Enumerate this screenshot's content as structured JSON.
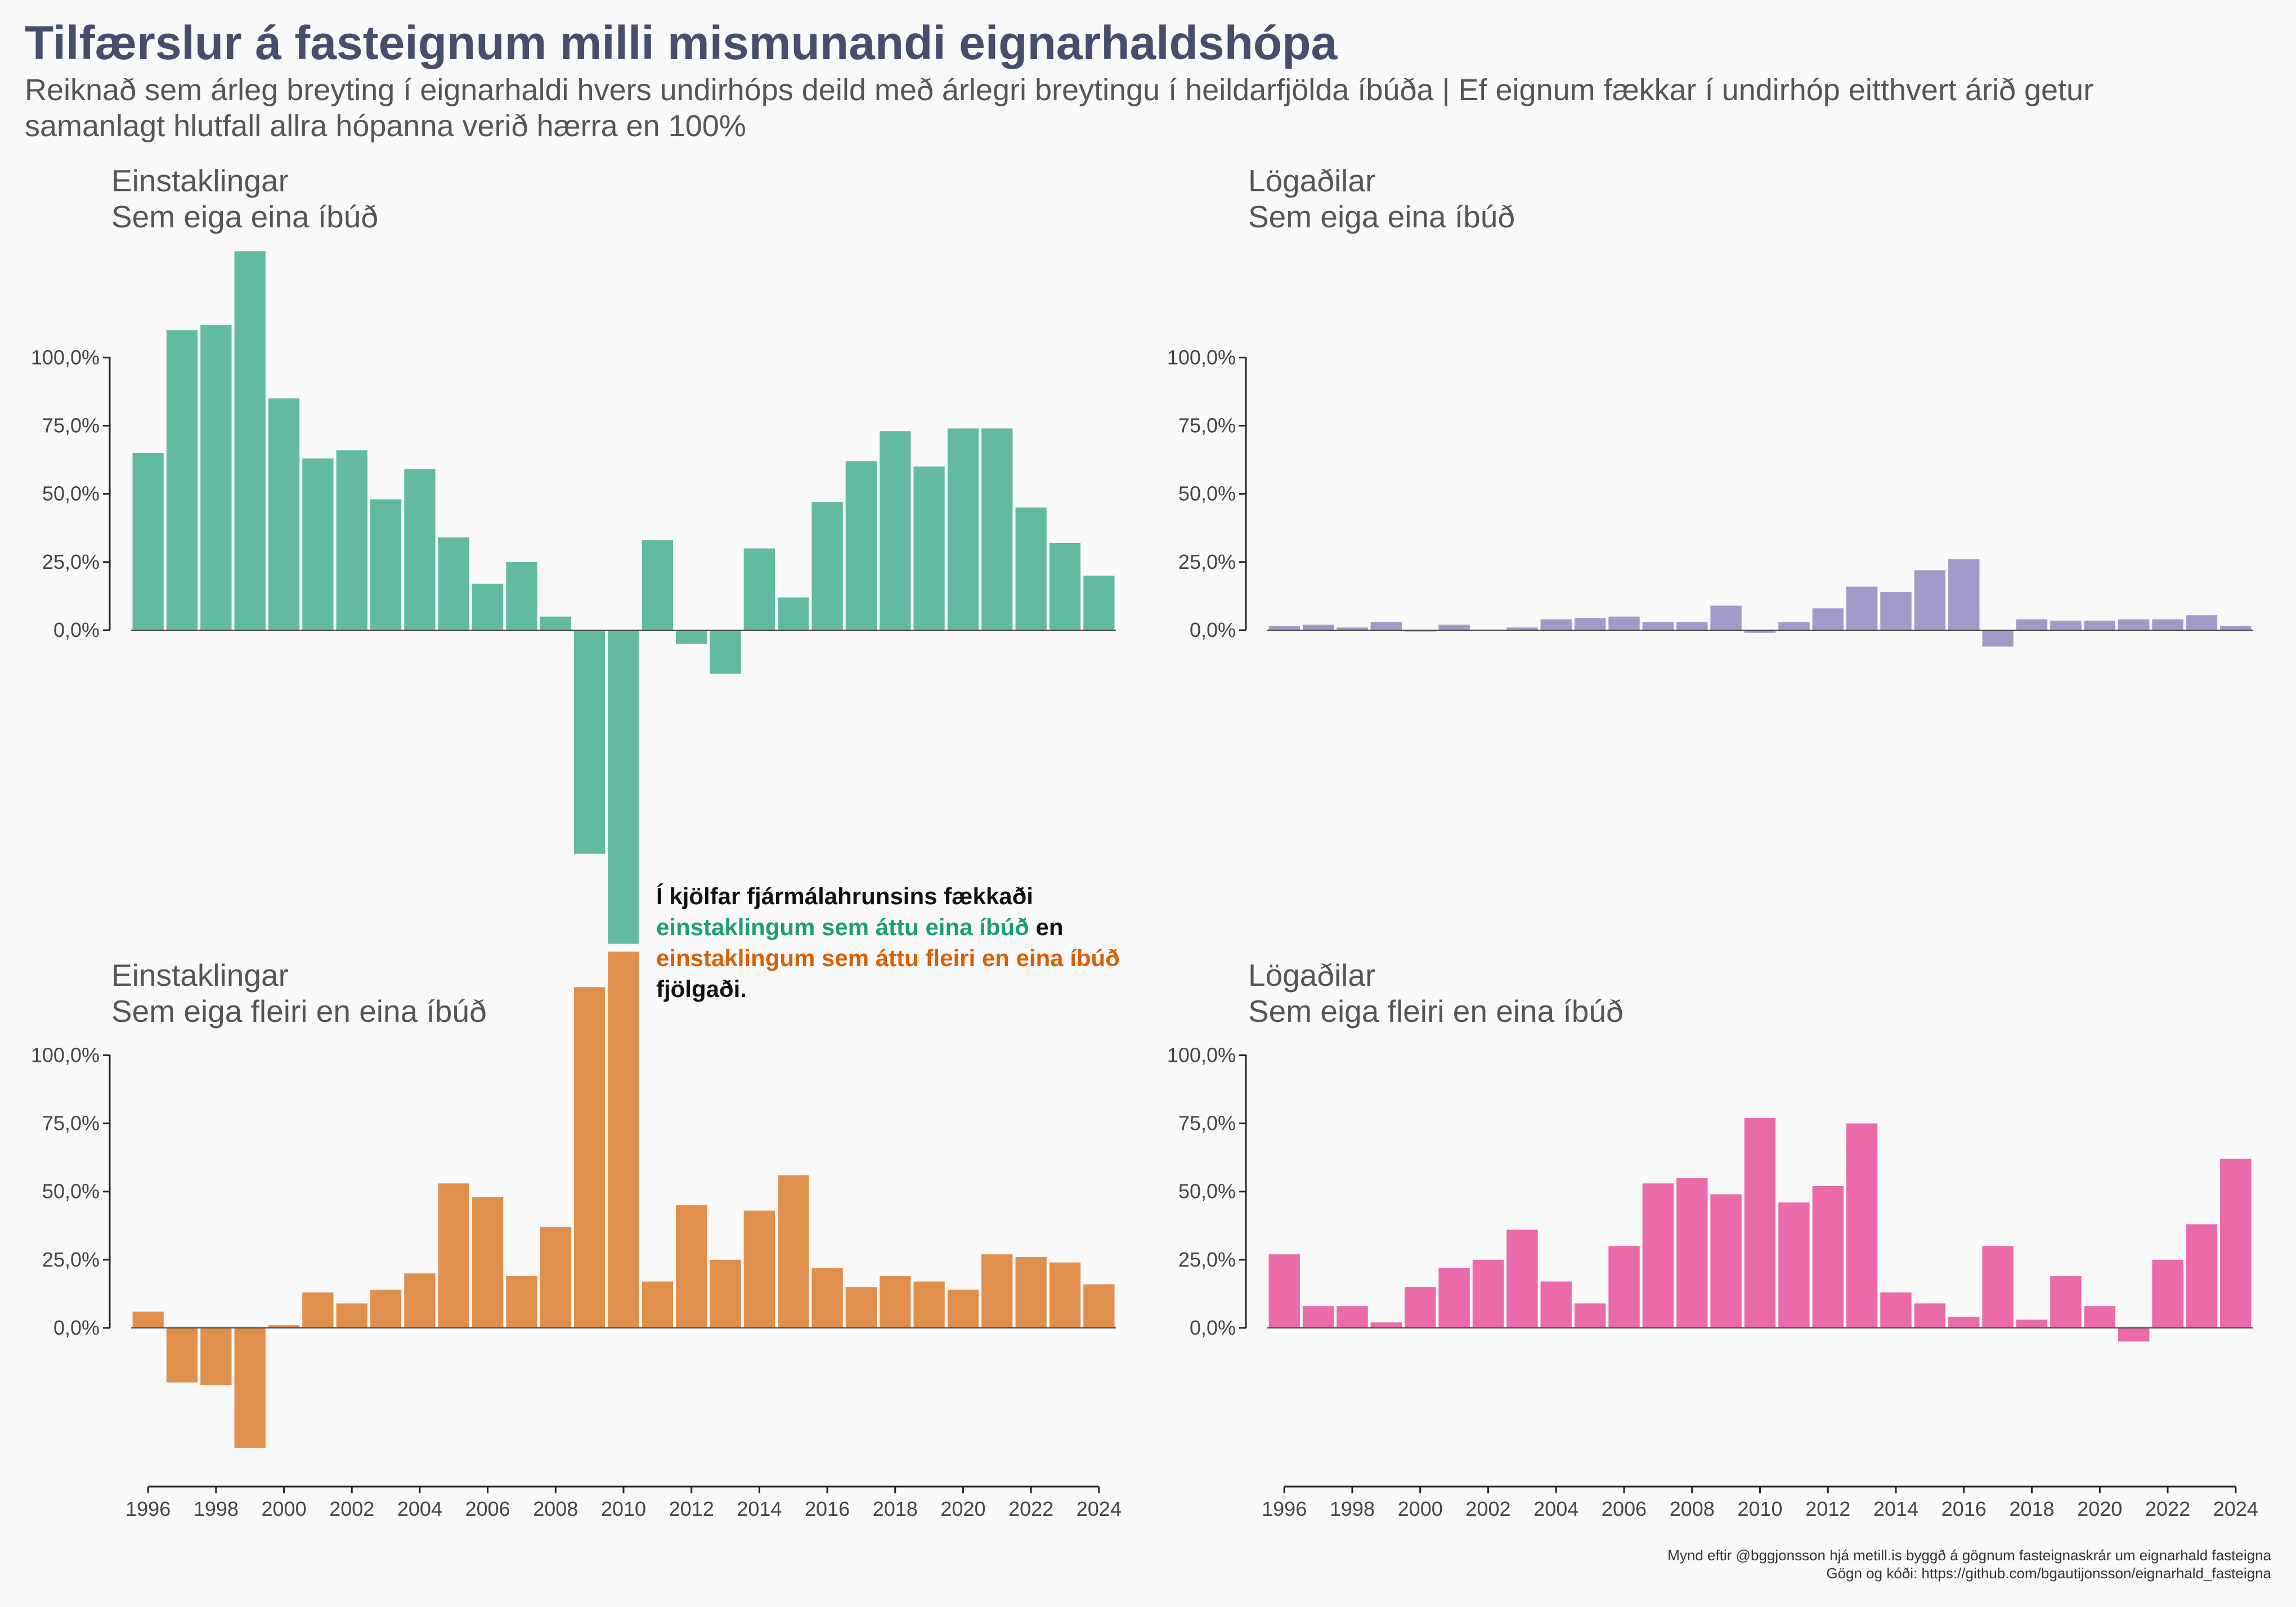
{
  "title": "Tilfærslur á fasteignum milli mismunandi eignarhaldshópa",
  "subtitle": "Reiknað sem árleg breyting í eignarhaldi hvers undirhóps deild með árlegri breytingu í heildarfjölda íbúða | Ef eignum fækkar í undirhóp eitthvert árið getur samanlagt hlutfall allra hópanna verið hærra en 100%",
  "caption": {
    "line1": "Mynd eftir @bggjonsson hjá metill.is byggð á gögnum fasteignaskrár um eignarhald fasteigna",
    "line2": "Gögn og kóði: https://github.com/bgautijonsson/eignarhald_fasteigna"
  },
  "annotation": {
    "line1": "Í kjölfar fjármálahrunsins fækkaði",
    "line2a": "einstaklingum sem áttu eina íbúð",
    "line2b": " en",
    "line3": "einstaklingum sem áttu fleiri en eina íbúð",
    "line4": "fjölgaði."
  },
  "chart_data": [
    {
      "type": "bar",
      "title": "Einstaklingar",
      "subtitle": "Sem eiga eina íbúð",
      "color": "#62bba0",
      "x": [
        1996,
        1997,
        1998,
        1999,
        2000,
        2001,
        2002,
        2003,
        2004,
        2005,
        2006,
        2007,
        2008,
        2009,
        2010,
        2011,
        2012,
        2013,
        2014,
        2015,
        2016,
        2017,
        2018,
        2019,
        2020,
        2021,
        2022,
        2023,
        2024
      ],
      "values": [
        65,
        110,
        112,
        139,
        85,
        63,
        66,
        48,
        59,
        34,
        17,
        25,
        5,
        -82,
        -115,
        33,
        -5,
        -16,
        30,
        12,
        47,
        62,
        73,
        60,
        74,
        74,
        45,
        32,
        20
      ],
      "yticks": [
        "0,0%",
        "25,0%",
        "50,0%",
        "75,0%",
        "100,0%"
      ],
      "ylim": [
        -115,
        139
      ]
    },
    {
      "type": "bar",
      "title": "Lögaðilar",
      "subtitle": "Sem eiga eina íbúð",
      "color": "#a19ac9",
      "x": [
        1996,
        1997,
        1998,
        1999,
        2000,
        2001,
        2002,
        2003,
        2004,
        2005,
        2006,
        2007,
        2008,
        2009,
        2010,
        2011,
        2012,
        2013,
        2014,
        2015,
        2016,
        2017,
        2018,
        2019,
        2020,
        2021,
        2022,
        2023,
        2024
      ],
      "values": [
        1.5,
        2,
        1,
        3,
        -0.5,
        2,
        0,
        1,
        4,
        4.5,
        5,
        3,
        3,
        9,
        -1,
        3,
        8,
        16,
        14,
        22,
        26,
        -6,
        4,
        3.5,
        3.5,
        4,
        4,
        5.5,
        1.5
      ],
      "yticks": [
        "0,0%",
        "25,0%",
        "50,0%",
        "75,0%",
        "100,0%"
      ],
      "ylim": [
        -6,
        100
      ]
    },
    {
      "type": "bar",
      "title": "Einstaklingar",
      "subtitle": "Sem eiga fleiri en eina íbúð",
      "color": "#e18f4c",
      "x": [
        1996,
        1997,
        1998,
        1999,
        2000,
        2001,
        2002,
        2003,
        2004,
        2005,
        2006,
        2007,
        2008,
        2009,
        2010,
        2011,
        2012,
        2013,
        2014,
        2015,
        2016,
        2017,
        2018,
        2019,
        2020,
        2021,
        2022,
        2023,
        2024
      ],
      "values": [
        6,
        -20,
        -21,
        -44,
        1,
        13,
        9,
        14,
        20,
        53,
        48,
        19,
        37,
        125,
        138,
        17,
        45,
        25,
        43,
        56,
        22,
        15,
        19,
        17,
        14,
        27,
        26,
        24,
        16
      ],
      "yticks": [
        "0,0%",
        "25,0%",
        "50,0%",
        "75,0%",
        "100,0%"
      ],
      "xticks": [
        1996,
        1998,
        2000,
        2002,
        2004,
        2006,
        2008,
        2010,
        2012,
        2014,
        2016,
        2018,
        2020,
        2022,
        2024
      ],
      "ylim": [
        -44,
        138
      ]
    },
    {
      "type": "bar",
      "title": "Lögaðilar",
      "subtitle": "Sem eiga fleiri en eina íbúð",
      "color": "#ea6aaa",
      "x": [
        1996,
        1997,
        1998,
        1999,
        2000,
        2001,
        2002,
        2003,
        2004,
        2005,
        2006,
        2007,
        2008,
        2009,
        2010,
        2011,
        2012,
        2013,
        2014,
        2015,
        2016,
        2017,
        2018,
        2019,
        2020,
        2021,
        2022,
        2023,
        2024
      ],
      "values": [
        27,
        8,
        8,
        2,
        15,
        22,
        25,
        36,
        17,
        9,
        30,
        53,
        55,
        49,
        77,
        46,
        52,
        75,
        13,
        9,
        4,
        30,
        3,
        19,
        8,
        -5,
        25,
        38,
        62
      ],
      "yticks": [
        "0,0%",
        "25,0%",
        "50,0%",
        "75,0%",
        "100,0%"
      ],
      "xticks": [
        1996,
        1998,
        2000,
        2002,
        2004,
        2006,
        2008,
        2010,
        2012,
        2014,
        2016,
        2018,
        2020,
        2022,
        2024
      ],
      "ylim": [
        -5,
        100
      ]
    }
  ]
}
